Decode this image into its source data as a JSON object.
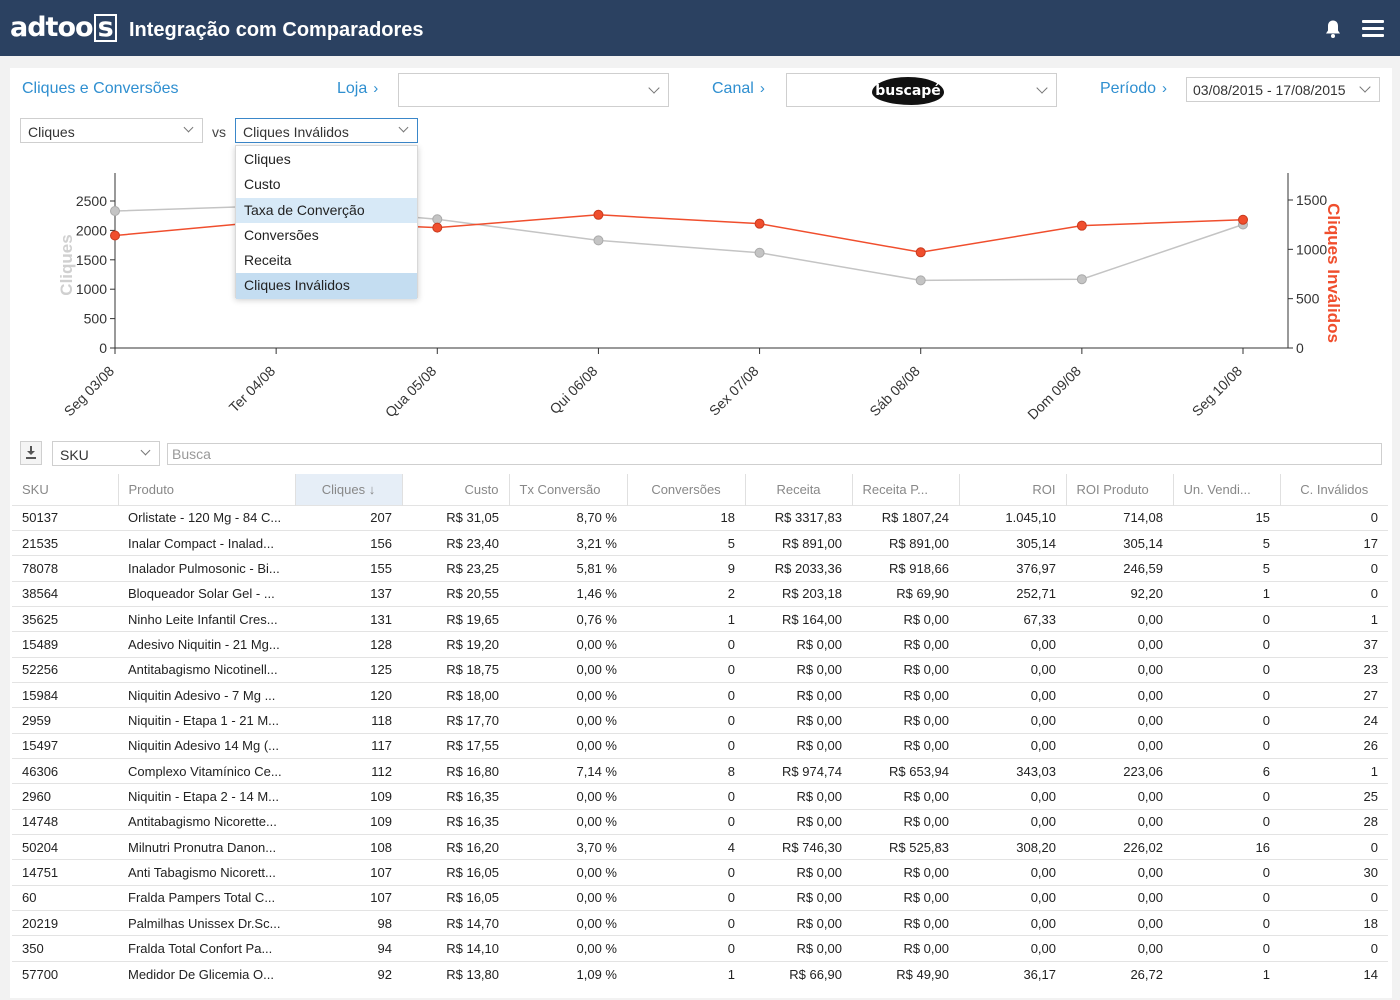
{
  "header": {
    "logo_text": "adtoo",
    "logo_box": "s",
    "title": "Integração com Comparadores",
    "bell_icon": "bell-icon",
    "menu_icon": "hamburger-menu-icon"
  },
  "filters": {
    "section_title": "Cliques e Conversões",
    "loja_label": "Loja",
    "loja_value": "",
    "canal_label": "Canal",
    "canal_value": "buscapé",
    "periodo_label": "Período",
    "periodo_value": "03/08/2015 - 17/08/2015",
    "chevron": "›"
  },
  "metric_select": {
    "primary": "Cliques",
    "vs_label": "vs",
    "secondary": "Cliques Inválidos",
    "options": [
      "Cliques",
      "Custo",
      "Taxa de Converção",
      "Conversões",
      "Receita",
      "Cliques Inválidos"
    ]
  },
  "colors": {
    "header_bg": "#2b4161",
    "accent_blue": "#2f8fd0",
    "series_primary": "#c4c4c4",
    "series_secondary": "#f04e2d"
  },
  "chart_data": {
    "type": "line",
    "categories": [
      "Seg 03/08",
      "Ter 04/08",
      "Qua 05/08",
      "Qui 06/08",
      "Sex 07/08",
      "Sáb 08/08",
      "Dom 09/08",
      "Seg 10/08"
    ],
    "ylabel": "Cliques",
    "y2label": "Cliques Inválidos",
    "ylim": [
      0,
      2500
    ],
    "yticks": [
      0,
      500,
      1000,
      1500,
      2000,
      2500
    ],
    "y2lim": [
      0,
      1500
    ],
    "y2ticks": [
      0,
      500,
      1000,
      1500
    ],
    "series": [
      {
        "name": "Cliques",
        "axis": "left",
        "color": "#c4c4c4",
        "values": [
          2330,
          2420,
          2190,
          1830,
          1620,
          1150,
          1170,
          2100
        ]
      },
      {
        "name": "Cliques Inválidos",
        "axis": "right",
        "color": "#f04e2d",
        "values": [
          1140,
          1290,
          1220,
          1350,
          1260,
          970,
          1240,
          1300
        ]
      }
    ]
  },
  "table": {
    "search_placeholder": "Busca",
    "filter_field": "SKU",
    "download_icon": "download-icon",
    "columns": [
      "SKU",
      "Produto",
      "Cliques ↓",
      "Custo",
      "Tx Conversão",
      "Conversões",
      "Receita",
      "Receita P...",
      "ROI",
      "ROI Produto",
      "Un. Vendi...",
      "C. Inválidos"
    ],
    "rows": [
      [
        "50137",
        "Orlistate - 120 Mg - 84 C...",
        "207",
        "R$ 31,05",
        "8,70 %",
        "18",
        "R$ 3317,83",
        "R$ 1807,24",
        "1.045,10",
        "714,08",
        "15",
        "0"
      ],
      [
        "21535",
        "Inalar Compact - Inalad...",
        "156",
        "R$ 23,40",
        "3,21 %",
        "5",
        "R$ 891,00",
        "R$ 891,00",
        "305,14",
        "305,14",
        "5",
        "17"
      ],
      [
        "78078",
        "Inalador Pulmosonic - Bi...",
        "155",
        "R$ 23,25",
        "5,81 %",
        "9",
        "R$ 2033,36",
        "R$ 918,66",
        "376,97",
        "246,59",
        "5",
        "0"
      ],
      [
        "38564",
        "Bloqueador Solar Gel - ...",
        "137",
        "R$ 20,55",
        "1,46 %",
        "2",
        "R$ 203,18",
        "R$ 69,90",
        "252,71",
        "92,20",
        "1",
        "0"
      ],
      [
        "35625",
        "Ninho Leite Infantil Cres...",
        "131",
        "R$ 19,65",
        "0,76 %",
        "1",
        "R$ 164,00",
        "R$ 0,00",
        "67,33",
        "0,00",
        "0",
        "1"
      ],
      [
        "15489",
        "Adesivo Niquitin - 21 Mg...",
        "128",
        "R$ 19,20",
        "0,00 %",
        "0",
        "R$ 0,00",
        "R$ 0,00",
        "0,00",
        "0,00",
        "0",
        "37"
      ],
      [
        "52256",
        "Antitabagismo Nicotinell...",
        "125",
        "R$ 18,75",
        "0,00 %",
        "0",
        "R$ 0,00",
        "R$ 0,00",
        "0,00",
        "0,00",
        "0",
        "23"
      ],
      [
        "15984",
        "Niquitin Adesivo - 7 Mg ...",
        "120",
        "R$ 18,00",
        "0,00 %",
        "0",
        "R$ 0,00",
        "R$ 0,00",
        "0,00",
        "0,00",
        "0",
        "27"
      ],
      [
        "2959",
        "Niquitin - Etapa 1 - 21 M...",
        "118",
        "R$ 17,70",
        "0,00 %",
        "0",
        "R$ 0,00",
        "R$ 0,00",
        "0,00",
        "0,00",
        "0",
        "24"
      ],
      [
        "15497",
        "Niquitin Adesivo 14 Mg (...",
        "117",
        "R$ 17,55",
        "0,00 %",
        "0",
        "R$ 0,00",
        "R$ 0,00",
        "0,00",
        "0,00",
        "0",
        "26"
      ],
      [
        "46306",
        "Complexo Vitamínico Ce...",
        "112",
        "R$ 16,80",
        "7,14 %",
        "8",
        "R$ 974,74",
        "R$ 653,94",
        "343,03",
        "223,06",
        "6",
        "1"
      ],
      [
        "2960",
        "Niquitin - Etapa 2 - 14 M...",
        "109",
        "R$ 16,35",
        "0,00 %",
        "0",
        "R$ 0,00",
        "R$ 0,00",
        "0,00",
        "0,00",
        "0",
        "25"
      ],
      [
        "14748",
        "Antitabagismo Nicorette...",
        "109",
        "R$ 16,35",
        "0,00 %",
        "0",
        "R$ 0,00",
        "R$ 0,00",
        "0,00",
        "0,00",
        "0",
        "28"
      ],
      [
        "50204",
        "Milnutri Pronutra Danon...",
        "108",
        "R$ 16,20",
        "3,70 %",
        "4",
        "R$ 746,30",
        "R$ 525,83",
        "308,20",
        "226,02",
        "16",
        "0"
      ],
      [
        "14751",
        "Anti Tabagismo Nicorett...",
        "107",
        "R$ 16,05",
        "0,00 %",
        "0",
        "R$ 0,00",
        "R$ 0,00",
        "0,00",
        "0,00",
        "0",
        "30"
      ],
      [
        "60",
        "Fralda Pampers Total C...",
        "107",
        "R$ 16,05",
        "0,00 %",
        "0",
        "R$ 0,00",
        "R$ 0,00",
        "0,00",
        "0,00",
        "0",
        "0"
      ],
      [
        "20219",
        "Palmilhas Unissex Dr.Sc...",
        "98",
        "R$ 14,70",
        "0,00 %",
        "0",
        "R$ 0,00",
        "R$ 0,00",
        "0,00",
        "0,00",
        "0",
        "18"
      ],
      [
        "350",
        "Fralda Total Confort Pa...",
        "94",
        "R$ 14,10",
        "0,00 %",
        "0",
        "R$ 0,00",
        "R$ 0,00",
        "0,00",
        "0,00",
        "0",
        "0"
      ],
      [
        "57700",
        "Medidor De Glicemia O...",
        "92",
        "R$ 13,80",
        "1,09 %",
        "1",
        "R$ 66,90",
        "R$ 49,90",
        "36,17",
        "26,72",
        "1",
        "14"
      ]
    ]
  }
}
